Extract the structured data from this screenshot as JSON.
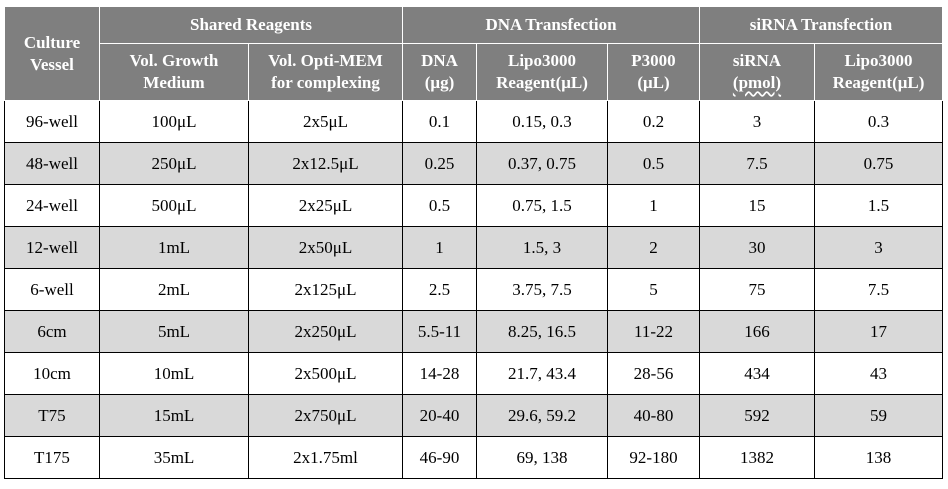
{
  "table": {
    "corner_header": {
      "line1": "Culture",
      "line2": "Vessel"
    },
    "groups": [
      {
        "label": "Shared Reagents"
      },
      {
        "label": "DNA Transfection"
      },
      {
        "label": "siRNA Transfection"
      }
    ],
    "subheaders": [
      {
        "line1": "Vol. Growth",
        "line2": "Medium"
      },
      {
        "line1": "Vol. Opti-MEM",
        "line2": "for complexing"
      },
      {
        "line1": "DNA",
        "line2": "(μg)"
      },
      {
        "line1": "Lipo3000",
        "line2": "Reagent(μL)"
      },
      {
        "line1": "P3000",
        "line2": "(μL)"
      },
      {
        "line1": "siRNA",
        "line2": "(pmol)"
      },
      {
        "line1": "Lipo3000",
        "line2": "Reagent(μL)"
      }
    ],
    "rows": [
      [
        "96-well",
        "100μL",
        "2x5μL",
        "0.1",
        "0.15, 0.3",
        "0.2",
        "3",
        "0.3"
      ],
      [
        "48-well",
        "250μL",
        "2x12.5μL",
        "0.25",
        "0.37, 0.75",
        "0.5",
        "7.5",
        "0.75"
      ],
      [
        "24-well",
        "500μL",
        "2x25μL",
        "0.5",
        "0.75, 1.5",
        "1",
        "15",
        "1.5"
      ],
      [
        "12-well",
        "1mL",
        "2x50μL",
        "1",
        "1.5, 3",
        "2",
        "30",
        "3"
      ],
      [
        "6-well",
        "2mL",
        "2x125μL",
        "2.5",
        "3.75, 7.5",
        "5",
        "75",
        "7.5"
      ],
      [
        "6cm",
        "5mL",
        "2x250μL",
        "5.5-11",
        "8.25, 16.5",
        "11-22",
        "166",
        "17"
      ],
      [
        "10cm",
        "10mL",
        "2x500μL",
        "14-28",
        "21.7, 43.4",
        "28-56",
        "434",
        "43"
      ],
      [
        "T75",
        "15mL",
        "2x750μL",
        "20-40",
        "29.6, 59.2",
        "40-80",
        "592",
        "59"
      ],
      [
        "T175",
        "35mL",
        "2x1.75ml",
        "46-90",
        "69, 138",
        "92-180",
        "1382",
        "138"
      ]
    ]
  }
}
